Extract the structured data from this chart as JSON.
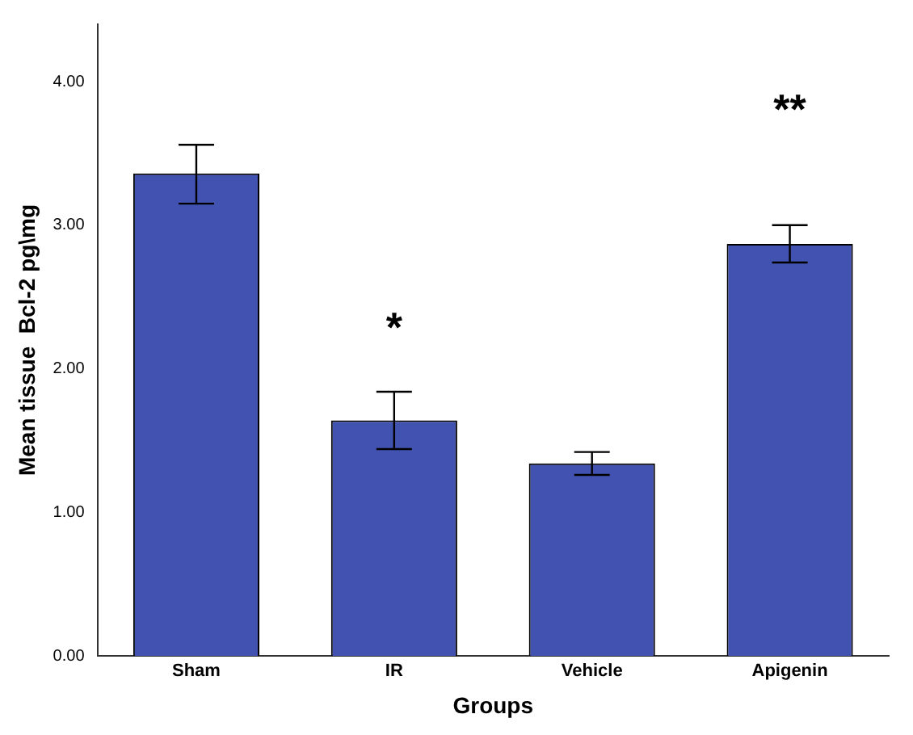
{
  "chart_data": {
    "type": "bar",
    "xlabel": "Groups",
    "ylabel": "Mean tissue  Bcl-2 pg\\mg",
    "categories": [
      "Sham",
      "IR",
      "Vehicle",
      "Apigenin"
    ],
    "values": [
      3.36,
      1.64,
      1.34,
      2.87
    ],
    "errors": [
      [
        3.15,
        3.56
      ],
      [
        1.44,
        1.84
      ],
      [
        1.26,
        1.42
      ],
      [
        2.74,
        3.0
      ]
    ],
    "color": "#4152b0",
    "ylim": [
      0,
      4.4
    ],
    "yticks": [
      {
        "value": 0,
        "label": "0.00"
      },
      {
        "value": 1,
        "label": "1.00"
      },
      {
        "value": 2,
        "label": "2.00"
      },
      {
        "value": 3,
        "label": "3.00"
      },
      {
        "value": 4,
        "label": "4.00"
      }
    ],
    "annotations": [
      "*",
      "**"
    ],
    "grid": false,
    "legend": false
  }
}
